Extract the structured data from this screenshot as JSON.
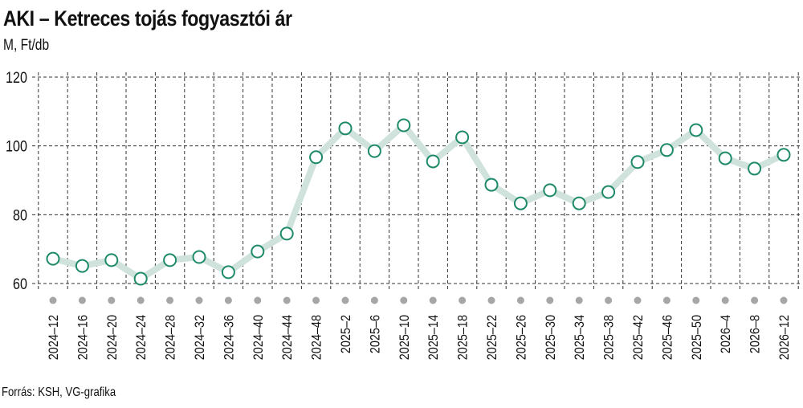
{
  "title": "AKI – Ketreces tojás fogyasztói ár",
  "subtitle": "M, Ft/db",
  "source": "Forrás: KSH, VG-grafika",
  "colors": {
    "line": "#cfe3dc",
    "marker_stroke": "#1f8a6a",
    "marker_fill": "#ffffff",
    "grid": "#333333",
    "axis_dot": "#a6a6a6"
  },
  "chart_data": {
    "type": "line",
    "title": "AKI – Ketreces tojás fogyasztói ár",
    "subtitle": "M, Ft/db",
    "xlabel": "",
    "ylabel": "Ft/db",
    "ylim": [
      60,
      120
    ],
    "yticks": [
      60,
      80,
      100,
      120
    ],
    "grid": true,
    "legend": null,
    "categories": [
      "2024–12",
      "2024–16",
      "2024–20",
      "2024–24",
      "2024–28",
      "2024–32",
      "2024–36",
      "2024–40",
      "2024–44",
      "2024–48",
      "2025–2",
      "2025–6",
      "2025–10",
      "2025–14",
      "2025–18",
      "2025–22",
      "2025–26",
      "2025–30",
      "2025–34",
      "2025–38",
      "2025–42",
      "2025–46",
      "2025–50",
      "2026–4",
      "2026–8",
      "2026–12"
    ],
    "series": [
      {
        "name": "Ketreces tojás fogyasztói ár",
        "values": [
          67.2,
          65.1,
          66.8,
          61.4,
          66.8,
          67.7,
          63.3,
          69.3,
          74.5,
          96.7,
          105.1,
          98.5,
          106.0,
          95.5,
          102.5,
          88.7,
          83.3,
          87.1,
          83.3,
          86.6,
          95.3,
          98.8,
          104.6,
          96.4,
          93.4,
          97.4
        ]
      }
    ],
    "source": "Forrás: KSH, VG-grafika"
  }
}
